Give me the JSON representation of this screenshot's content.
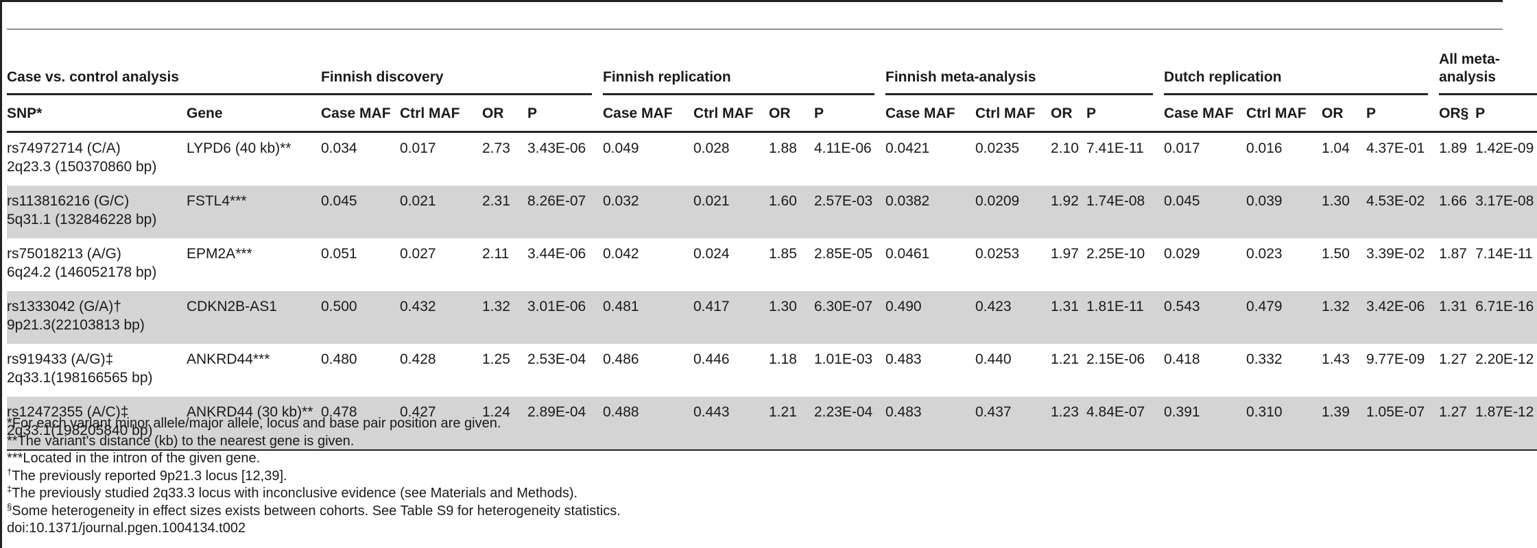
{
  "groups": {
    "case_control": "Case vs. control analysis",
    "finnish_discovery": "Finnish discovery",
    "finnish_replication": "Finnish replication",
    "finnish_meta": "Finnish meta-analysis",
    "dutch_replication": "Dutch replication",
    "all_meta": "All meta-analysis"
  },
  "columns": {
    "snp": "SNP*",
    "gene": "Gene",
    "case_maf": "Case MAF",
    "ctrl_maf": "Ctrl MAF",
    "or": "OR",
    "p": "P",
    "or_section": "OR§"
  },
  "rows": [
    {
      "snp": "rs74972714 (C/A)",
      "locus": "2q23.3 (150370860 bp)",
      "gene": "LYPD6 (40 kb)**",
      "fd": [
        "0.034",
        "0.017",
        "2.73",
        "3.43E-06"
      ],
      "fr": [
        "0.049",
        "0.028",
        "1.88",
        "4.11E-06"
      ],
      "fm": [
        "0.0421",
        "0.0235",
        "2.10",
        "7.41E-11"
      ],
      "dr": [
        "0.017",
        "0.016",
        "1.04",
        "4.37E-01"
      ],
      "am": [
        "1.89",
        "1.42E-09"
      ]
    },
    {
      "snp": "rs113816216 (G/C)",
      "locus": "5q31.1 (132846228 bp)",
      "gene": "FSTL4***",
      "fd": [
        "0.045",
        "0.021",
        "2.31",
        "8.26E-07"
      ],
      "fr": [
        "0.032",
        "0.021",
        "1.60",
        "2.57E-03"
      ],
      "fm": [
        "0.0382",
        "0.0209",
        "1.92",
        "1.74E-08"
      ],
      "dr": [
        "0.045",
        "0.039",
        "1.30",
        "4.53E-02"
      ],
      "am": [
        "1.66",
        "3.17E-08"
      ]
    },
    {
      "snp": "rs75018213 (A/G)",
      "locus": "6q24.2 (146052178 bp)",
      "gene": "EPM2A***",
      "fd": [
        "0.051",
        "0.027",
        "2.11",
        "3.44E-06"
      ],
      "fr": [
        "0.042",
        "0.024",
        "1.85",
        "2.85E-05"
      ],
      "fm": [
        "0.0461",
        "0.0253",
        "1.97",
        "2.25E-10"
      ],
      "dr": [
        "0.029",
        "0.023",
        "1.50",
        "3.39E-02"
      ],
      "am": [
        "1.87",
        "7.14E-11"
      ]
    },
    {
      "snp": "rs1333042 (G/A)†",
      "locus": "9p21.3(22103813 bp)",
      "gene": "CDKN2B-AS1",
      "fd": [
        "0.500",
        "0.432",
        "1.32",
        "3.01E-06"
      ],
      "fr": [
        "0.481",
        "0.417",
        "1.30",
        "6.30E-07"
      ],
      "fm": [
        "0.490",
        "0.423",
        "1.31",
        "1.81E-11"
      ],
      "dr": [
        "0.543",
        "0.479",
        "1.32",
        "3.42E-06"
      ],
      "am": [
        "1.31",
        "6.71E-16"
      ]
    },
    {
      "snp": "rs919433 (A/G)‡",
      "locus": "2q33.1(198166565 bp)",
      "gene": "ANKRD44***",
      "fd": [
        "0.480",
        "0.428",
        "1.25",
        "2.53E-04"
      ],
      "fr": [
        "0.486",
        "0.446",
        "1.18",
        "1.01E-03"
      ],
      "fm": [
        "0.483",
        "0.440",
        "1.21",
        "2.15E-06"
      ],
      "dr": [
        "0.418",
        "0.332",
        "1.43",
        "9.77E-09"
      ],
      "am": [
        "1.27",
        "2.20E-12"
      ]
    },
    {
      "snp": "rs12472355 (A/C)‡",
      "locus": "2q33.1(198205840 bp)",
      "gene": "ANKRD44 (30 kb)**",
      "fd": [
        "0.478",
        "0.427",
        "1.24",
        "2.89E-04"
      ],
      "fr": [
        "0.488",
        "0.443",
        "1.21",
        "2.23E-04"
      ],
      "fm": [
        "0.483",
        "0.437",
        "1.23",
        "4.84E-07"
      ],
      "dr": [
        "0.391",
        "0.310",
        "1.39",
        "1.05E-07"
      ],
      "am": [
        "1.27",
        "1.87E-12"
      ]
    }
  ],
  "notes": [
    {
      "mark": "",
      "text": "*For each variant minor allele/major allele, locus and base pair position are given."
    },
    {
      "mark": "",
      "text": "**The variant's distance (kb) to the nearest gene is given."
    },
    {
      "mark": "",
      "text": "***Located in the intron of the given gene."
    },
    {
      "mark": "†",
      "text": "The previously reported 9p21.3 locus [12,39]."
    },
    {
      "mark": "‡",
      "text": "The previously studied 2q33.3 locus with inconclusive evidence (see Materials and Methods)."
    },
    {
      "mark": "§",
      "text": "Some heterogeneity in effect sizes exists between cohorts. See Table S9 for heterogeneity statistics."
    },
    {
      "mark": "",
      "text": "doi:10.1371/journal.pgen.1004134.t002"
    }
  ]
}
